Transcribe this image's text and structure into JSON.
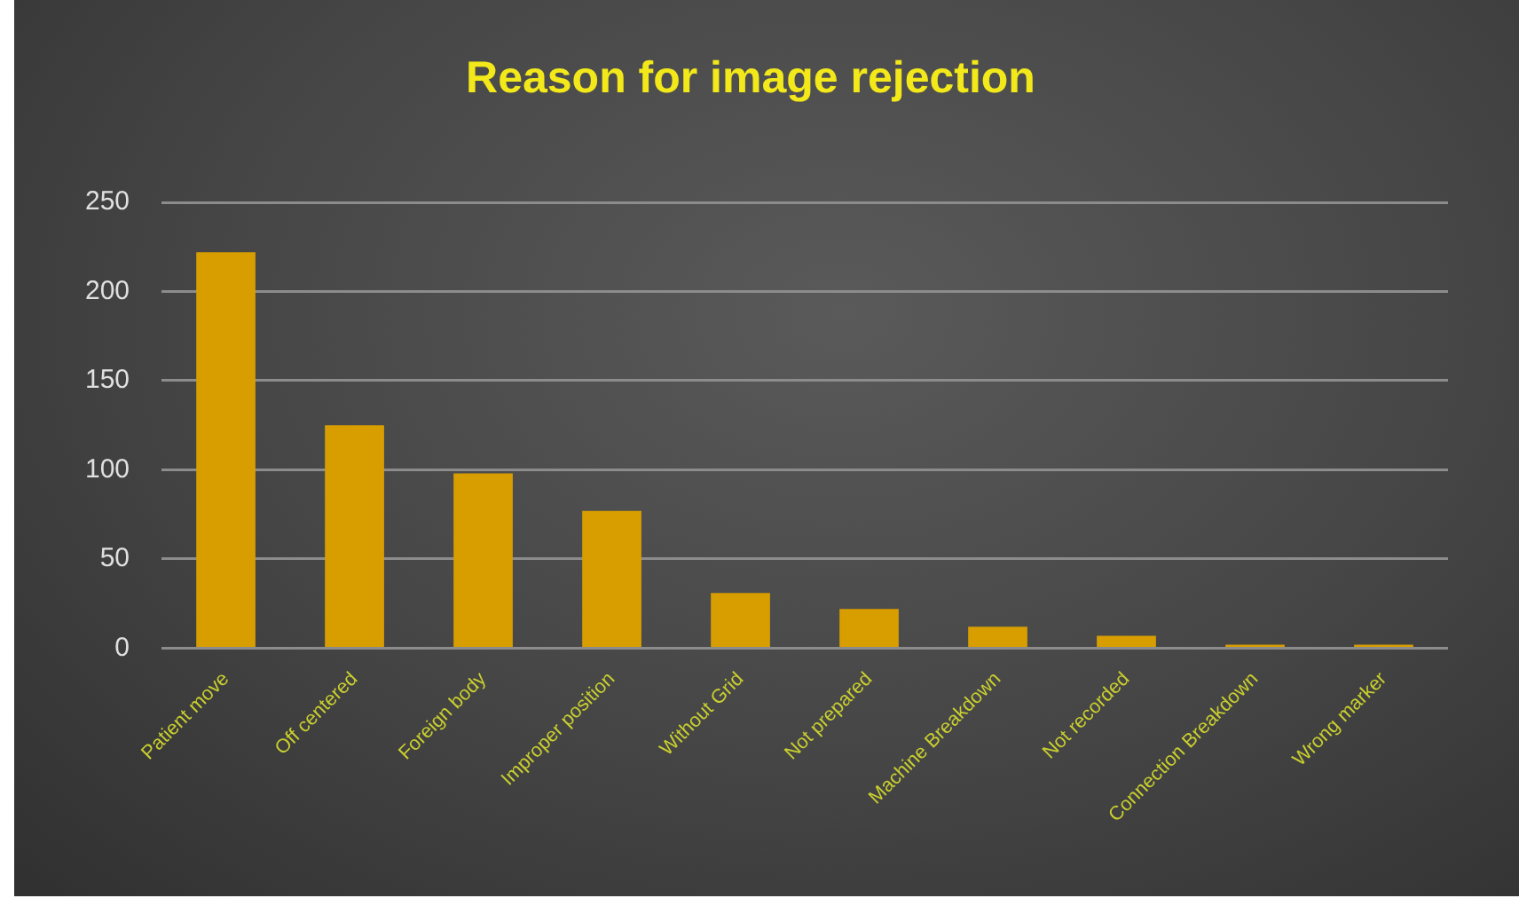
{
  "chart_data": {
    "type": "bar",
    "title": "Reason for image rejection",
    "categories": [
      "Patient move",
      "Off centered",
      "Foreign body",
      "Improper position",
      "Without Grid",
      "Not prepared",
      "Machine Breakdown",
      "Not recorded",
      "Connection Breakdown",
      "Wrong marker"
    ],
    "values": [
      222,
      125,
      98,
      77,
      31,
      22,
      12,
      7,
      2,
      2
    ],
    "color": "#d89e00",
    "ylim": [
      0,
      250
    ],
    "yticks": [
      0,
      50,
      100,
      150,
      200,
      250
    ],
    "grid": "y"
  }
}
